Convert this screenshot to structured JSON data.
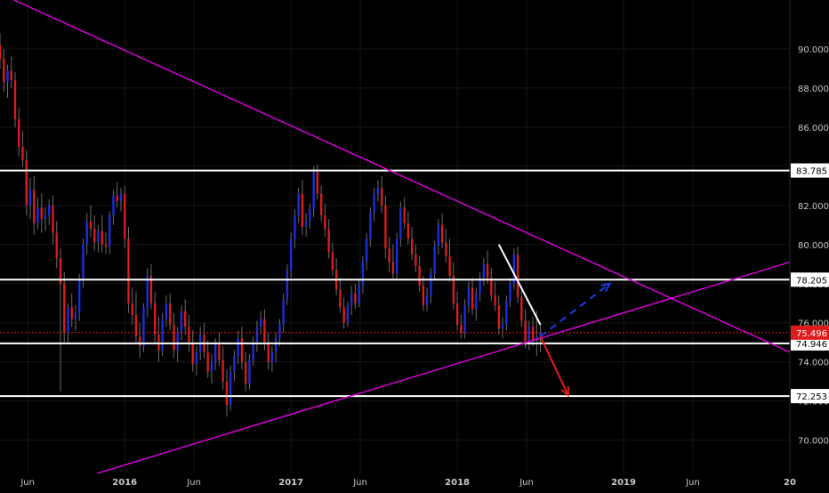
{
  "chart_data": {
    "type": "candlestick",
    "title": "",
    "xlabel": "",
    "ylabel": "",
    "ylim": [
      68.3,
      92.5
    ],
    "y_ticks": [
      "70.000",
      "72.000",
      "74.000",
      "76.000",
      "78.000",
      "80.000",
      "82.000",
      "84.000",
      "86.000",
      "88.000",
      "90.000"
    ],
    "x_ticks": [
      {
        "label": "Jun",
        "date": "2015-06"
      },
      {
        "label": "2016",
        "date": "2016-01"
      },
      {
        "label": "Jun",
        "date": "2016-06"
      },
      {
        "label": "2017",
        "date": "2017-01"
      },
      {
        "label": "Jun",
        "date": "2017-06"
      },
      {
        "label": "2018",
        "date": "2018-01"
      },
      {
        "label": "Jun",
        "date": "2018-06"
      },
      {
        "label": "2019",
        "date": "2019-01"
      },
      {
        "label": "Jun",
        "date": "2019-06"
      },
      {
        "label": "20",
        "date": "2020-01"
      }
    ],
    "x_range": [
      "2015-04",
      "2020-01"
    ],
    "grid": true,
    "price_levels": [
      {
        "value": 83.785,
        "label": "83.785",
        "style": "white"
      },
      {
        "value": 78.205,
        "label": "78.205",
        "style": "white"
      },
      {
        "value": 74.946,
        "label": "74.946",
        "style": "white"
      },
      {
        "value": 72.253,
        "label": "72.253",
        "style": "white"
      },
      {
        "value": 75.496,
        "label": "75.496",
        "style": "current"
      }
    ],
    "trendlines": [
      {
        "color": "#d400d4",
        "from": {
          "date": "2015-05",
          "value": 92.5
        },
        "to": {
          "date": "2020-01",
          "value": 74.5
        }
      },
      {
        "color": "#d400d4",
        "from": {
          "date": "2015-11",
          "value": 68.3
        },
        "to": {
          "date": "2020-01",
          "value": 79.1
        }
      },
      {
        "color": "#ffffff",
        "from": {
          "date": "2018-04",
          "value": 80.0
        },
        "to": {
          "date": "2018-07",
          "value": 75.9
        }
      }
    ],
    "projections": [
      {
        "color": "#1e3ce6",
        "dash": true,
        "from": {
          "date": "2018-07",
          "value": 75.3
        },
        "to": {
          "date": "2018-12",
          "value": 78.0
        }
      },
      {
        "color": "#e01b1b",
        "dash": false,
        "from": {
          "date": "2018-07",
          "value": 75.3
        },
        "to": {
          "date": "2018-09",
          "value": 72.3
        }
      }
    ],
    "candles": [
      [
        90.2,
        90.8,
        89.0,
        89.5
      ],
      [
        89.5,
        90.0,
        87.8,
        88.3
      ],
      [
        88.3,
        89.2,
        87.5,
        88.9
      ],
      [
        88.9,
        89.6,
        88.0,
        88.4
      ],
      [
        88.4,
        88.8,
        86.0,
        86.4
      ],
      [
        86.4,
        87.0,
        84.5,
        85.0
      ],
      [
        85.0,
        85.8,
        84.0,
        84.3
      ],
      [
        84.3,
        84.8,
        81.5,
        82.0
      ],
      [
        82.0,
        83.4,
        81.3,
        82.8
      ],
      [
        82.8,
        83.5,
        80.5,
        81.1
      ],
      [
        81.1,
        82.4,
        80.8,
        81.9
      ],
      [
        81.9,
        82.6,
        80.6,
        81.3
      ],
      [
        81.3,
        81.9,
        80.7,
        81.5
      ],
      [
        81.5,
        82.3,
        81.0,
        82.0
      ],
      [
        82.0,
        82.5,
        80.0,
        80.6
      ],
      [
        80.6,
        81.2,
        78.8,
        79.3
      ],
      [
        79.3,
        79.8,
        72.5,
        78.0
      ],
      [
        78.0,
        78.6,
        75.0,
        75.5
      ],
      [
        75.5,
        77.0,
        74.9,
        76.8
      ],
      [
        76.8,
        77.5,
        75.8,
        76.2
      ],
      [
        76.2,
        76.9,
        75.6,
        76.5
      ],
      [
        76.5,
        78.5,
        76.1,
        78.2
      ],
      [
        78.2,
        80.3,
        77.8,
        80.0
      ],
      [
        80.0,
        81.6,
        79.5,
        81.2
      ],
      [
        81.2,
        82.0,
        80.4,
        80.8
      ],
      [
        80.8,
        81.5,
        79.7,
        80.1
      ],
      [
        80.1,
        81.0,
        79.6,
        80.7
      ],
      [
        80.7,
        81.5,
        79.6,
        80.0
      ],
      [
        80.0,
        80.6,
        79.5,
        79.9
      ],
      [
        79.9,
        81.7,
        79.5,
        81.5
      ],
      [
        81.5,
        82.8,
        81.0,
        82.5
      ],
      [
        82.5,
        83.2,
        81.9,
        82.2
      ],
      [
        82.2,
        82.9,
        81.7,
        82.6
      ],
      [
        82.6,
        83.0,
        79.8,
        80.3
      ],
      [
        80.3,
        80.9,
        76.5,
        77.0
      ],
      [
        77.0,
        77.8,
        75.9,
        76.4
      ],
      [
        76.4,
        77.6,
        75.0,
        75.3
      ],
      [
        75.3,
        76.0,
        74.2,
        74.8
      ],
      [
        74.8,
        77.0,
        74.5,
        76.8
      ],
      [
        76.8,
        78.8,
        76.3,
        78.4
      ],
      [
        78.4,
        79.0,
        76.7,
        77.0
      ],
      [
        77.0,
        77.6,
        75.0,
        75.4
      ],
      [
        75.4,
        76.3,
        74.0,
        74.6
      ],
      [
        74.6,
        76.5,
        74.3,
        76.2
      ],
      [
        76.2,
        77.4,
        75.8,
        77.0
      ],
      [
        77.0,
        77.5,
        75.6,
        75.9
      ],
      [
        75.9,
        76.5,
        74.2,
        74.6
      ],
      [
        74.6,
        75.8,
        74.0,
        75.5
      ],
      [
        75.5,
        76.9,
        75.1,
        76.6
      ],
      [
        76.6,
        77.2,
        75.4,
        75.8
      ],
      [
        75.8,
        76.4,
        74.5,
        75.0
      ],
      [
        75.0,
        75.6,
        73.5,
        73.9
      ],
      [
        73.9,
        74.8,
        73.3,
        74.5
      ],
      [
        74.5,
        75.8,
        74.1,
        75.4
      ],
      [
        75.4,
        76.0,
        74.2,
        74.5
      ],
      [
        74.5,
        75.1,
        73.2,
        73.5
      ],
      [
        73.5,
        74.4,
        72.9,
        74.0
      ],
      [
        74.0,
        75.2,
        73.6,
        74.9
      ],
      [
        74.9,
        75.5,
        73.8,
        74.1
      ],
      [
        74.1,
        74.8,
        72.6,
        73.0
      ],
      [
        73.0,
        73.6,
        71.2,
        71.8
      ],
      [
        71.8,
        73.8,
        71.5,
        73.5
      ],
      [
        73.5,
        74.6,
        73.0,
        74.3
      ],
      [
        74.3,
        75.6,
        73.9,
        75.2
      ],
      [
        75.2,
        75.8,
        73.6,
        74.0
      ],
      [
        74.0,
        74.5,
        72.5,
        72.9
      ],
      [
        72.9,
        74.4,
        72.6,
        74.1
      ],
      [
        74.1,
        75.3,
        73.8,
        74.9
      ],
      [
        74.9,
        76.1,
        74.5,
        75.8
      ],
      [
        75.8,
        76.6,
        75.4,
        76.2
      ],
      [
        76.2,
        76.7,
        74.6,
        75.0
      ],
      [
        75.0,
        75.5,
        73.6,
        74.0
      ],
      [
        74.0,
        74.8,
        73.5,
        74.5
      ],
      [
        74.5,
        75.5,
        74.0,
        75.2
      ],
      [
        75.2,
        76.2,
        74.8,
        75.9
      ],
      [
        75.9,
        77.5,
        75.5,
        77.2
      ],
      [
        77.2,
        79.0,
        76.9,
        78.7
      ],
      [
        78.7,
        80.6,
        78.3,
        80.3
      ],
      [
        80.3,
        81.8,
        79.8,
        81.5
      ],
      [
        81.5,
        82.9,
        81.1,
        82.6
      ],
      [
        82.6,
        83.3,
        80.5,
        80.9
      ],
      [
        80.9,
        81.6,
        80.4,
        81.2
      ],
      [
        81.2,
        82.1,
        80.8,
        81.8
      ],
      [
        81.8,
        84.0,
        81.4,
        83.7
      ],
      [
        83.7,
        84.1,
        82.3,
        82.6
      ],
      [
        82.6,
        83.0,
        81.2,
        81.5
      ],
      [
        81.5,
        82.1,
        80.4,
        80.8
      ],
      [
        80.8,
        81.3,
        79.3,
        79.6
      ],
      [
        79.6,
        80.1,
        78.4,
        78.7
      ],
      [
        78.7,
        79.3,
        77.4,
        77.7
      ],
      [
        77.7,
        78.3,
        76.5,
        76.8
      ],
      [
        76.8,
        77.3,
        75.7,
        76.0
      ],
      [
        76.0,
        77.1,
        75.8,
        76.9
      ],
      [
        76.9,
        77.9,
        76.4,
        77.5
      ],
      [
        77.5,
        78.0,
        76.7,
        77.0
      ],
      [
        77.0,
        78.2,
        76.8,
        77.9
      ],
      [
        77.9,
        79.4,
        77.5,
        79.1
      ],
      [
        79.1,
        80.6,
        78.7,
        80.3
      ],
      [
        80.3,
        81.9,
        79.9,
        81.6
      ],
      [
        81.6,
        82.9,
        81.2,
        82.6
      ],
      [
        82.6,
        83.3,
        82.2,
        82.9
      ],
      [
        82.9,
        83.5,
        81.6,
        82.0
      ],
      [
        82.0,
        82.5,
        79.3,
        79.8
      ],
      [
        79.8,
        80.4,
        78.6,
        79.1
      ],
      [
        79.1,
        80.0,
        78.2,
        78.5
      ],
      [
        78.5,
        80.6,
        78.2,
        80.3
      ],
      [
        80.3,
        82.2,
        79.9,
        81.9
      ],
      [
        81.9,
        82.4,
        80.8,
        81.1
      ],
      [
        81.1,
        81.7,
        80.0,
        80.3
      ],
      [
        80.3,
        80.9,
        79.2,
        79.5
      ],
      [
        79.5,
        80.0,
        78.6,
        78.9
      ],
      [
        78.9,
        79.4,
        77.6,
        77.9
      ],
      [
        77.9,
        78.4,
        76.6,
        76.9
      ],
      [
        76.9,
        77.8,
        76.6,
        77.4
      ],
      [
        77.4,
        78.8,
        77.0,
        78.5
      ],
      [
        78.5,
        80.2,
        78.2,
        79.9
      ],
      [
        79.9,
        81.3,
        79.5,
        81.0
      ],
      [
        81.0,
        81.6,
        79.8,
        80.1
      ],
      [
        80.1,
        80.8,
        79.1,
        79.4
      ],
      [
        79.4,
        80.3,
        78.1,
        78.4
      ],
      [
        78.4,
        79.1,
        76.7,
        77.0
      ],
      [
        77.0,
        77.6,
        75.6,
        75.9
      ],
      [
        75.9,
        76.4,
        75.2,
        75.5
      ],
      [
        75.5,
        77.2,
        75.2,
        76.9
      ],
      [
        76.9,
        78.1,
        76.5,
        77.8
      ],
      [
        77.8,
        78.3,
        76.4,
        76.7
      ],
      [
        76.7,
        77.8,
        76.1,
        77.5
      ],
      [
        77.5,
        78.6,
        77.1,
        78.3
      ],
      [
        78.3,
        79.3,
        77.9,
        79.0
      ],
      [
        79.0,
        79.7,
        78.0,
        78.3
      ],
      [
        78.3,
        78.8,
        77.1,
        77.4
      ],
      [
        77.4,
        78.1,
        76.6,
        76.9
      ],
      [
        76.9,
        77.4,
        75.4,
        75.7
      ],
      [
        75.7,
        76.3,
        75.2,
        75.9
      ],
      [
        75.9,
        77.4,
        75.6,
        77.1
      ],
      [
        77.1,
        78.3,
        76.8,
        78.0
      ],
      [
        78.0,
        79.8,
        77.7,
        79.5
      ],
      [
        79.5,
        79.9,
        77.0,
        77.3
      ],
      [
        77.3,
        77.9,
        75.8,
        76.1
      ],
      [
        76.1,
        76.7,
        74.7,
        75.0
      ],
      [
        75.0,
        76.1,
        74.6,
        75.8
      ],
      [
        75.8,
        76.3,
        74.8,
        75.1
      ],
      [
        75.1,
        76.6,
        74.3,
        75.3
      ],
      [
        75.3,
        75.9,
        74.5,
        75.496
      ]
    ],
    "candle_dates": {
      "first": "2015-04-01",
      "last": "2018-07-01"
    }
  }
}
